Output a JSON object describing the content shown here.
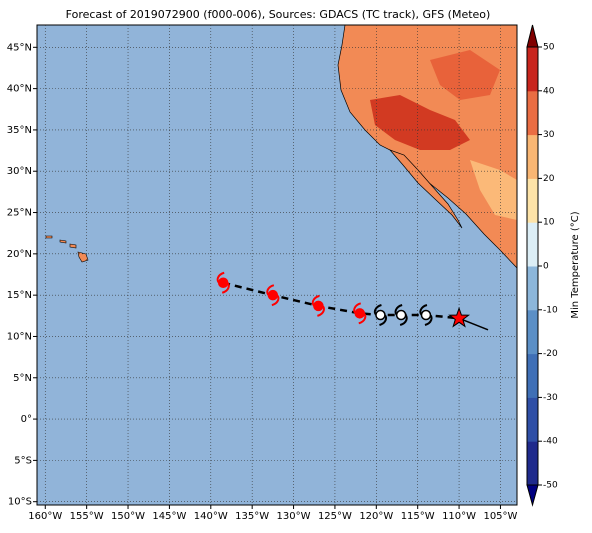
{
  "title": "Forecast of 2019072900 (f000-006), Sources: GDACS (TC track), GFS (Meteo)",
  "map": {
    "xlim": [
      -161,
      -103
    ],
    "ylim": [
      -10.4,
      47.7
    ],
    "xticks": [
      {
        "value": -160,
        "label": "160°W"
      },
      {
        "value": -155,
        "label": "155°W"
      },
      {
        "value": -150,
        "label": "150°W"
      },
      {
        "value": -145,
        "label": "145°W"
      },
      {
        "value": -140,
        "label": "140°W"
      },
      {
        "value": -135,
        "label": "135°W"
      },
      {
        "value": -130,
        "label": "130°W"
      },
      {
        "value": -125,
        "label": "125°W"
      },
      {
        "value": -120,
        "label": "120°W"
      },
      {
        "value": -115,
        "label": "115°W"
      },
      {
        "value": -110,
        "label": "110°W"
      },
      {
        "value": -105,
        "label": "105°W"
      }
    ],
    "yticks": [
      {
        "value": 45,
        "label": "45°N"
      },
      {
        "value": 40,
        "label": "40°N"
      },
      {
        "value": 35,
        "label": "35°N"
      },
      {
        "value": 30,
        "label": "30°N"
      },
      {
        "value": 25,
        "label": "25°N"
      },
      {
        "value": 20,
        "label": "20°N"
      },
      {
        "value": 15,
        "label": "15°N"
      },
      {
        "value": 10,
        "label": "10°N"
      },
      {
        "value": 5,
        "label": "5°N"
      },
      {
        "value": 0,
        "label": "0°"
      },
      {
        "value": -5,
        "label": "5°S"
      },
      {
        "value": -10,
        "label": "10°S"
      }
    ],
    "grid": true,
    "track": {
      "lon": [
        -138.5,
        -132.5,
        -127,
        -122,
        -119.5,
        -117,
        -114,
        -110
      ],
      "lat": [
        16.5,
        15,
        13.7,
        12.8,
        12.6,
        12.6,
        12.6,
        12.2
      ],
      "colors": [
        "#ff0000",
        "#ff0000",
        "#ff0000",
        "#ff0000",
        "#000000",
        "#000000",
        "#000000",
        "#ff0000"
      ]
    },
    "forecast": {
      "lon": [
        -110,
        -106.5
      ],
      "lat": [
        12.2,
        10.8
      ]
    }
  },
  "colorbar": {
    "label": "Min Temperature (°C)",
    "lim": [
      -50,
      50
    ],
    "ticks": [
      -50,
      -40,
      -30,
      -20,
      -10,
      0,
      10,
      20,
      30,
      40,
      50
    ],
    "colors": [
      "#1f2a8c",
      "#2f4fa6",
      "#3f6fb6",
      "#5b8fc6",
      "#8cb6da",
      "#dceef6",
      "#fde3a8",
      "#f9b673",
      "#ea6d43",
      "#c8251e"
    ]
  }
}
